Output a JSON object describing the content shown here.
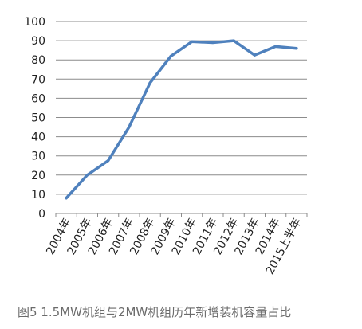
{
  "chart_data": {
    "type": "line",
    "categories": [
      "2004年",
      "2005年",
      "2006年",
      "2007年",
      "2008年",
      "2009年",
      "2010年",
      "2011年",
      "2012年",
      "2013年",
      "2014年",
      "2015上半年"
    ],
    "series": [
      {
        "values": [
          8,
          20,
          27.5,
          45,
          68,
          82,
          89.5,
          89,
          90,
          82.5,
          87,
          86
        ]
      }
    ],
    "ylim": [
      0,
      100
    ],
    "yticks": [
      0,
      10,
      20,
      30,
      40,
      50,
      60,
      70,
      80,
      90,
      100
    ],
    "grid": true,
    "line_color": "#4f81bd"
  },
  "caption": "图5 1.5MW机组与2MW机组历年新增装机容量占比"
}
